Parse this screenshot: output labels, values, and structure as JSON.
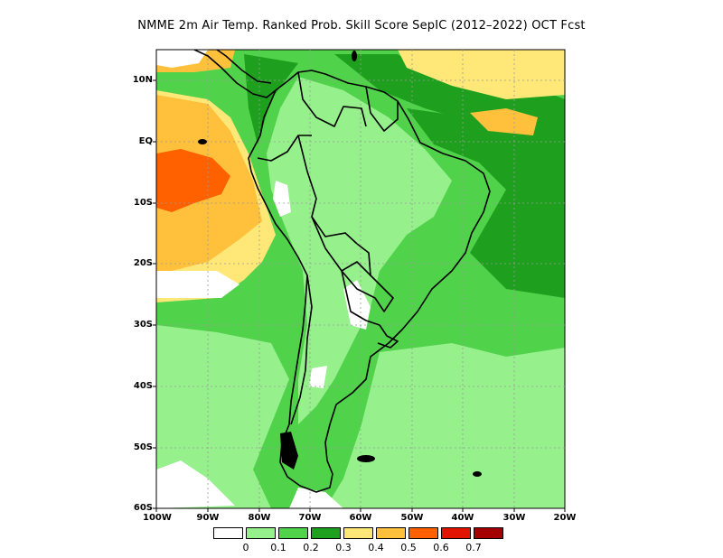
{
  "title": "NMME  2m Air Temp. Ranked Prob. Skill Score SepIC (2012–2022) OCT Fcst",
  "map": {
    "lat_labels": [
      "10N",
      "EQ",
      "10S",
      "20S",
      "30S",
      "40S",
      "50S",
      "60S"
    ],
    "lon_labels": [
      "100W",
      "90W",
      "80W",
      "70W",
      "60W",
      "50W",
      "40W",
      "30W",
      "20W"
    ]
  },
  "legend": {
    "labels": [
      "0",
      "0.1",
      "0.2",
      "0.3",
      "0.4",
      "0.5",
      "0.6",
      "0.7"
    ],
    "colors": [
      "#ffffff",
      "#96f08c",
      "#50d24b",
      "#1ea01e",
      "#ffe878",
      "#ffc03c",
      "#ff6000",
      "#e11400",
      "#a50000"
    ]
  }
}
